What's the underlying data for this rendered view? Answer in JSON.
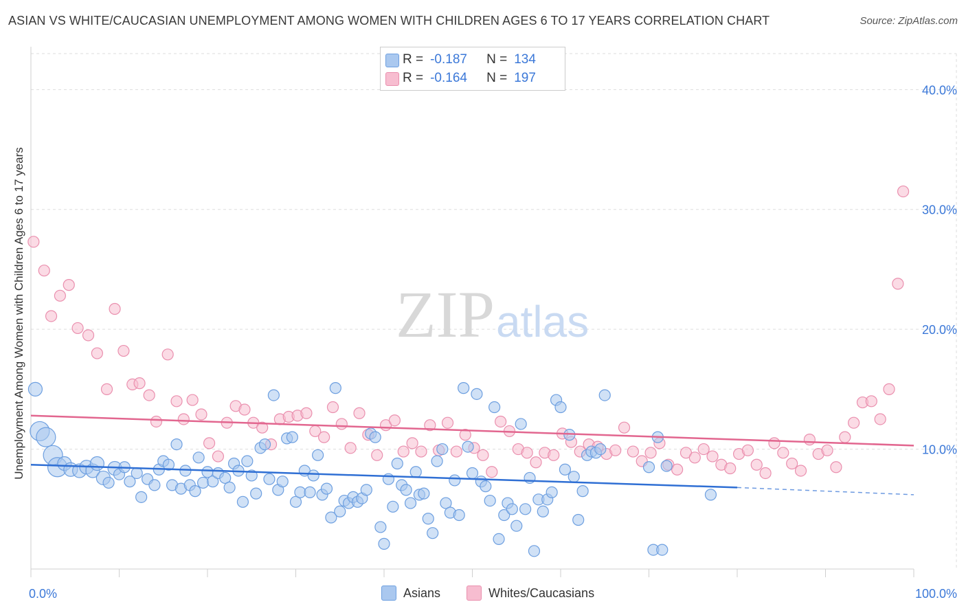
{
  "header": {
    "title": "ASIAN VS WHITE/CAUCASIAN UNEMPLOYMENT AMONG WOMEN WITH CHILDREN AGES 6 TO 17 YEARS CORRELATION CHART",
    "source": "Source: ZipAtlas.com"
  },
  "watermark": {
    "zip": "ZIP",
    "atlas": "atlas"
  },
  "legend": {
    "asians": {
      "r_label": "R =",
      "r_value": "-0.187",
      "n_label": "N =",
      "n_value": "134"
    },
    "whites": {
      "r_label": "R =",
      "r_value": "-0.164",
      "n_label": "N =",
      "n_value": "197"
    }
  },
  "bottom_legend": {
    "asians": "Asians",
    "whites": "Whites/Caucasians"
  },
  "colors": {
    "asian_fill": "#aac8ef",
    "asian_stroke": "#6d9fe0",
    "asian_line": "#2f6fd4",
    "white_fill": "#f7bdd0",
    "white_stroke": "#ea8fae",
    "white_line": "#e2668f",
    "tick_text": "#3b78d8",
    "grid": "#dddddd"
  },
  "chart_data": {
    "type": "scatter",
    "title": "ASIAN VS WHITE/CAUCASIAN UNEMPLOYMENT AMONG WOMEN WITH CHILDREN AGES 6 TO 17 YEARS CORRELATION CHART",
    "xlabel": "",
    "ylabel": "Unemployment Among Women with Children Ages 6 to 17 years",
    "xlim": [
      0,
      100
    ],
    "ylim": [
      0,
      43
    ],
    "x_tick_labels": [
      "0.0%",
      "100.0%"
    ],
    "y_ticks": [
      10,
      20,
      30,
      40
    ],
    "y_tick_labels": [
      "10.0%",
      "20.0%",
      "30.0%",
      "40.0%"
    ],
    "grid": true,
    "legend_position": "top-center",
    "series": [
      {
        "name": "Asians",
        "r": -0.187,
        "n": 134,
        "trend": {
          "x": [
            0,
            80
          ],
          "y": [
            8.7,
            6.8
          ],
          "dashed_to": [
            100,
            6.2
          ]
        },
        "points": [
          [
            0.5,
            15,
            10
          ],
          [
            1,
            11.5,
            14
          ],
          [
            1.7,
            11,
            14
          ],
          [
            2.5,
            9.5,
            14
          ],
          [
            3,
            8.5,
            14
          ],
          [
            3.8,
            8.8,
            10
          ],
          [
            4.5,
            8.3,
            10
          ],
          [
            5.5,
            8.2,
            10
          ],
          [
            6.3,
            8.5,
            10
          ],
          [
            7,
            8.2,
            10
          ],
          [
            7.5,
            8.8,
            10
          ],
          [
            8.2,
            7.6,
            10
          ],
          [
            8.8,
            7.2,
            8
          ],
          [
            9.5,
            8.4,
            10
          ],
          [
            10,
            7.9,
            8
          ],
          [
            10.6,
            8.5,
            8
          ],
          [
            11.2,
            7.3,
            8
          ],
          [
            12,
            8,
            8
          ],
          [
            12.5,
            6,
            8
          ],
          [
            13.2,
            7.5,
            8
          ],
          [
            14,
            7,
            8
          ],
          [
            14.5,
            8.3,
            8
          ],
          [
            15,
            9.0,
            8
          ],
          [
            15.6,
            8.7,
            8
          ],
          [
            16,
            7,
            8
          ],
          [
            16.5,
            10.4,
            8
          ],
          [
            17,
            6.7,
            8
          ],
          [
            17.5,
            8.2,
            8
          ],
          [
            18,
            7,
            8
          ],
          [
            18.6,
            6.5,
            8
          ],
          [
            19,
            9.3,
            8
          ],
          [
            19.5,
            7.2,
            8
          ],
          [
            20,
            8.1,
            8
          ],
          [
            20.6,
            7.3,
            8
          ],
          [
            21.2,
            8,
            8
          ],
          [
            22,
            7.6,
            8
          ],
          [
            22.5,
            6.8,
            8
          ],
          [
            23,
            8.8,
            8
          ],
          [
            23.5,
            8.2,
            8
          ],
          [
            24,
            5.6,
            8
          ],
          [
            24.5,
            9,
            8
          ],
          [
            25,
            7.8,
            8
          ],
          [
            25.5,
            6.3,
            8
          ],
          [
            26,
            10.1,
            8
          ],
          [
            26.5,
            10.4,
            8
          ],
          [
            27,
            7.5,
            8
          ],
          [
            27.5,
            14.5,
            8
          ],
          [
            28,
            6.6,
            8
          ],
          [
            28.5,
            7.3,
            8
          ],
          [
            29,
            10.9,
            8
          ],
          [
            29.6,
            11,
            8
          ],
          [
            30,
            5.6,
            8
          ],
          [
            30.5,
            6.4,
            8
          ],
          [
            31,
            8.2,
            8
          ],
          [
            31.6,
            6.4,
            8
          ],
          [
            32,
            7.8,
            8
          ],
          [
            32.5,
            9.5,
            8
          ],
          [
            33,
            6.2,
            8
          ],
          [
            33.5,
            6.7,
            8
          ],
          [
            34,
            4.3,
            8
          ],
          [
            34.5,
            15.1,
            8
          ],
          [
            35,
            4.8,
            8
          ],
          [
            35.5,
            5.7,
            8
          ],
          [
            36,
            5.5,
            8
          ],
          [
            36.5,
            6,
            8
          ],
          [
            37,
            5.6,
            8
          ],
          [
            37.5,
            5.9,
            8
          ],
          [
            38,
            6.6,
            8
          ],
          [
            38.5,
            11.3,
            8
          ],
          [
            39,
            11,
            8
          ],
          [
            39.6,
            3.5,
            8
          ],
          [
            40,
            2.1,
            8
          ],
          [
            40.5,
            7.5,
            8
          ],
          [
            41,
            5.2,
            8
          ],
          [
            41.5,
            8.8,
            8
          ],
          [
            42,
            7.0,
            8
          ],
          [
            42.5,
            6.6,
            8
          ],
          [
            43,
            5.5,
            8
          ],
          [
            43.6,
            8.1,
            8
          ],
          [
            44,
            6.2,
            8
          ],
          [
            44.5,
            6.3,
            8
          ],
          [
            45,
            4.2,
            8
          ],
          [
            45.5,
            3.0,
            8
          ],
          [
            46,
            9,
            8
          ],
          [
            46.6,
            10.0,
            8
          ],
          [
            47,
            5.5,
            8
          ],
          [
            47.5,
            4.7,
            8
          ],
          [
            48,
            7.4,
            8
          ],
          [
            48.5,
            4.5,
            8
          ],
          [
            49,
            15.1,
            8
          ],
          [
            49.5,
            10.2,
            8
          ],
          [
            50,
            8,
            8
          ],
          [
            50.5,
            14.6,
            8
          ],
          [
            51,
            7.3,
            8
          ],
          [
            51.5,
            6.9,
            8
          ],
          [
            52,
            5.7,
            8
          ],
          [
            52.5,
            13.5,
            8
          ],
          [
            53,
            2.5,
            8
          ],
          [
            53.6,
            4.5,
            8
          ],
          [
            54,
            5.5,
            8
          ],
          [
            54.5,
            5,
            8
          ],
          [
            55,
            3.6,
            8
          ],
          [
            55.5,
            12.1,
            8
          ],
          [
            56,
            5,
            8
          ],
          [
            56.5,
            7.6,
            8
          ],
          [
            57,
            1.5,
            8
          ],
          [
            57.5,
            5.8,
            8
          ],
          [
            58,
            4.8,
            8
          ],
          [
            58.5,
            5.8,
            8
          ],
          [
            59,
            6.4,
            8
          ],
          [
            59.5,
            14.1,
            8
          ],
          [
            60,
            13.5,
            8
          ],
          [
            60.5,
            8.3,
            8
          ],
          [
            61,
            11.2,
            8
          ],
          [
            61.5,
            7.7,
            8
          ],
          [
            62,
            4.1,
            8
          ],
          [
            62.5,
            6.5,
            8
          ],
          [
            63,
            9.5,
            8
          ],
          [
            63.5,
            9.8,
            8
          ],
          [
            64,
            9.7,
            8
          ],
          [
            64.5,
            10,
            8
          ],
          [
            65,
            14.5,
            8
          ],
          [
            70,
            8.5,
            8
          ],
          [
            70.5,
            1.6,
            8
          ],
          [
            71,
            11,
            8
          ],
          [
            71.5,
            1.6,
            8
          ],
          [
            72,
            8.6,
            8
          ],
          [
            77,
            6.2,
            8
          ]
        ]
      },
      {
        "name": "Whites/Caucasians",
        "r": -0.164,
        "n": 197,
        "trend": {
          "x": [
            0,
            100
          ],
          "y": [
            12.8,
            10.3
          ]
        },
        "points": [
          [
            0.3,
            27.3,
            8
          ],
          [
            1.5,
            24.9,
            8
          ],
          [
            2.3,
            21.1,
            8
          ],
          [
            3.3,
            22.8,
            8
          ],
          [
            4.3,
            23.7,
            8
          ],
          [
            5.3,
            20.1,
            8
          ],
          [
            6.5,
            19.5,
            8
          ],
          [
            7.5,
            18,
            8
          ],
          [
            8.6,
            15,
            8
          ],
          [
            9.5,
            21.7,
            8
          ],
          [
            10.5,
            18.2,
            8
          ],
          [
            11.5,
            15.4,
            8
          ],
          [
            12.3,
            15.5,
            8
          ],
          [
            13.4,
            14.5,
            8
          ],
          [
            14.2,
            12.3,
            8
          ],
          [
            15.5,
            17.9,
            8
          ],
          [
            16.5,
            14,
            8
          ],
          [
            17.3,
            12.5,
            8
          ],
          [
            18.3,
            14.1,
            8
          ],
          [
            19.3,
            12.9,
            8
          ],
          [
            20.2,
            10.5,
            8
          ],
          [
            21.2,
            9.4,
            8
          ],
          [
            22.2,
            12.2,
            8
          ],
          [
            23.2,
            13.6,
            8
          ],
          [
            24.2,
            13.3,
            8
          ],
          [
            25.2,
            12.2,
            8
          ],
          [
            26.2,
            11.8,
            8
          ],
          [
            27.2,
            10.4,
            8
          ],
          [
            28.2,
            12.5,
            8
          ],
          [
            29.2,
            12.7,
            8
          ],
          [
            30.2,
            12.8,
            8
          ],
          [
            31.2,
            13,
            8
          ],
          [
            32.2,
            11.5,
            8
          ],
          [
            33.2,
            11,
            8
          ],
          [
            34.2,
            13.5,
            8
          ],
          [
            35.2,
            12.1,
            8
          ],
          [
            36.2,
            10.1,
            8
          ],
          [
            37.2,
            13,
            8
          ],
          [
            38.2,
            11.2,
            8
          ],
          [
            39.2,
            9.5,
            8
          ],
          [
            40.2,
            12.0,
            8
          ],
          [
            41.2,
            12.4,
            8
          ],
          [
            42.2,
            9.8,
            8
          ],
          [
            43.2,
            10.5,
            8
          ],
          [
            44.2,
            9.8,
            8
          ],
          [
            45.2,
            12.0,
            8
          ],
          [
            46.2,
            9.9,
            8
          ],
          [
            47.2,
            12.2,
            8
          ],
          [
            48.2,
            9.8,
            8
          ],
          [
            49.2,
            11.2,
            8
          ],
          [
            50.2,
            10.1,
            8
          ],
          [
            51.2,
            9.5,
            8
          ],
          [
            52.2,
            8.1,
            8
          ],
          [
            53.2,
            12.3,
            8
          ],
          [
            54.2,
            11.5,
            8
          ],
          [
            55.2,
            10.0,
            8
          ],
          [
            56.2,
            9.7,
            8
          ],
          [
            57.2,
            8.9,
            8
          ],
          [
            58.2,
            9.7,
            8
          ],
          [
            59.2,
            9.5,
            8
          ],
          [
            60.2,
            11.3,
            8
          ],
          [
            61.2,
            10.6,
            8
          ],
          [
            62.2,
            9.8,
            8
          ],
          [
            63.2,
            10.4,
            8
          ],
          [
            64.2,
            10.2,
            8
          ],
          [
            65.2,
            9.6,
            8
          ],
          [
            66.2,
            9.9,
            8
          ],
          [
            67.2,
            11.8,
            8
          ],
          [
            68.2,
            9.8,
            8
          ],
          [
            69.2,
            9.0,
            8
          ],
          [
            70.2,
            9.7,
            8
          ],
          [
            71.2,
            10.5,
            8
          ],
          [
            72.2,
            8.7,
            8
          ],
          [
            73.2,
            8.3,
            8
          ],
          [
            74.2,
            9.7,
            8
          ],
          [
            75.2,
            9.3,
            8
          ],
          [
            76.2,
            10.0,
            8
          ],
          [
            77.2,
            9.4,
            8
          ],
          [
            78.2,
            8.7,
            8
          ],
          [
            79.2,
            8.4,
            8
          ],
          [
            80.2,
            9.6,
            8
          ],
          [
            81.2,
            9.9,
            8
          ],
          [
            82.2,
            8.7,
            8
          ],
          [
            83.2,
            8.0,
            8
          ],
          [
            84.2,
            10.5,
            8
          ],
          [
            85.2,
            9.7,
            8
          ],
          [
            86.2,
            8.8,
            8
          ],
          [
            87.2,
            8.2,
            8
          ],
          [
            88.2,
            10.8,
            8
          ],
          [
            89.2,
            9.6,
            8
          ],
          [
            90.2,
            9.9,
            8
          ],
          [
            91.2,
            8.5,
            8
          ],
          [
            92.2,
            11.0,
            8
          ],
          [
            93.2,
            12.2,
            8
          ],
          [
            94.2,
            13.9,
            8
          ],
          [
            95.2,
            14.0,
            8
          ],
          [
            96.2,
            12.5,
            8
          ],
          [
            97.2,
            15.0,
            8
          ],
          [
            98.2,
            23.8,
            8
          ],
          [
            98.8,
            31.5,
            8
          ]
        ]
      }
    ]
  }
}
